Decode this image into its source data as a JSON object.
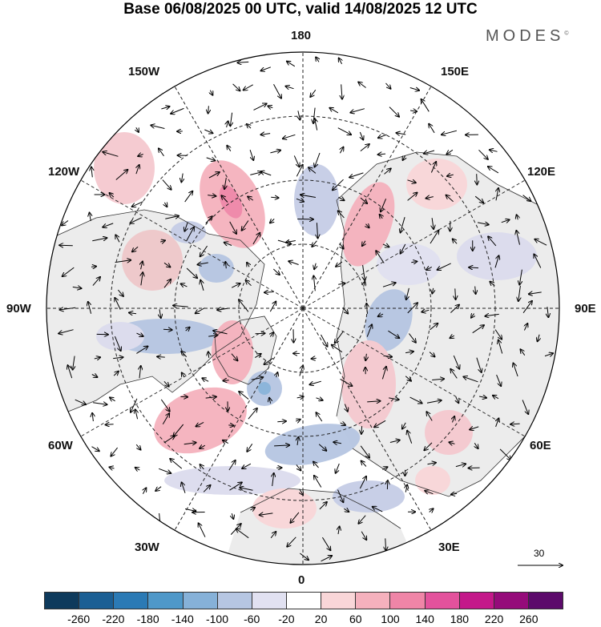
{
  "title": "Base 06/08/2025 00 UTC, valid 14/08/2025 12 UTC",
  "brand": "MODES",
  "brand_mark": "©",
  "longitude_labels": {
    "top": "180",
    "bottom": "0",
    "left": "90W",
    "right": "90E",
    "upper_left_1": "150W",
    "upper_left_2": "120W",
    "lower_left_1": "60W",
    "lower_left_2": "30W",
    "upper_right_1": "150E",
    "upper_right_2": "120E",
    "lower_right_1": "60E",
    "lower_right_2": "30E"
  },
  "vector_scale": "30",
  "colorbar": {
    "colors": [
      "#0e3a5c",
      "#1b5f94",
      "#2b7ab5",
      "#4f98c9",
      "#86b1d8",
      "#b6c6e2",
      "#e1e1f1",
      "#ffffff",
      "#f9d6d8",
      "#f5b1bd",
      "#ef85a7",
      "#e3529c",
      "#c4188a",
      "#950b7a",
      "#5c0a6b"
    ],
    "labels": [
      "-260",
      "-220",
      "-180",
      "-140",
      "-100",
      "-60",
      "-20",
      "20",
      "60",
      "100",
      "140",
      "180",
      "220",
      "260"
    ]
  },
  "colors": {
    "land": "#ececec",
    "grid": "#222222",
    "coast": "#333333"
  }
}
